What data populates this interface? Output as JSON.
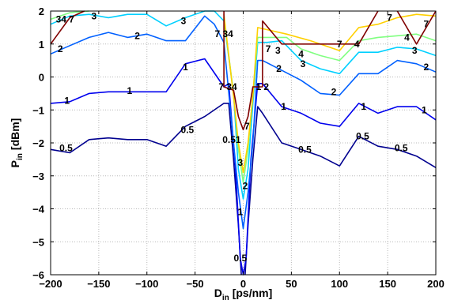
{
  "chart_data": {
    "type": "contour",
    "xlabel_main": "D",
    "xlabel_sub": "in",
    "xlabel_unit": "[ps/nm]",
    "ylabel_main": "P",
    "ylabel_sub": "in",
    "ylabel_unit": "[dBm]",
    "xlim": [
      -200,
      200
    ],
    "ylim": [
      -6,
      2
    ],
    "xticks": [
      -200,
      -150,
      -100,
      -50,
      0,
      50,
      100,
      150,
      200
    ],
    "yticks": [
      -6,
      -5,
      -4,
      -3,
      -2,
      -1,
      0,
      1,
      2
    ],
    "grid": true,
    "series": [
      {
        "name": "0.5",
        "color": "#00008f",
        "paths": [
          [
            [
              -200,
              -2.2
            ],
            [
              -180,
              -2.3
            ],
            [
              -160,
              -1.9
            ],
            [
              -140,
              -1.85
            ],
            [
              -120,
              -1.9
            ],
            [
              -100,
              -1.9
            ],
            [
              -80,
              -2.1
            ],
            [
              -60,
              -1.5
            ],
            [
              -40,
              -1.2
            ],
            [
              -20,
              -0.8
            ],
            [
              -15,
              -0.8
            ],
            [
              -10,
              -2.5
            ],
            [
              -5,
              -4.5
            ],
            [
              -2,
              -6
            ]
          ],
          [
            [
              2,
              -6
            ],
            [
              5,
              -4.5
            ],
            [
              10,
              -2.5
            ],
            [
              15,
              -0.9
            ],
            [
              20,
              -1.1
            ],
            [
              40,
              -2
            ],
            [
              60,
              -2.2
            ],
            [
              80,
              -2.4
            ],
            [
              100,
              -2.7
            ],
            [
              120,
              -1.8
            ],
            [
              140,
              -2.1
            ],
            [
              160,
              -2.2
            ],
            [
              180,
              -2.4
            ],
            [
              200,
              -2.75
            ]
          ]
        ]
      },
      {
        "name": "1",
        "color": "#0000ee",
        "paths": [
          [
            [
              -200,
              -0.8
            ],
            [
              -180,
              -0.75
            ],
            [
              -160,
              -0.5
            ],
            [
              -140,
              -0.45
            ],
            [
              -120,
              -0.45
            ],
            [
              -100,
              -0.45
            ],
            [
              -80,
              -0.45
            ],
            [
              -60,
              0.4
            ],
            [
              -40,
              0.55
            ],
            [
              -20,
              -0.3
            ],
            [
              -15,
              -0.2
            ],
            [
              -8,
              -2.8
            ],
            [
              -3,
              -5.5
            ],
            [
              0,
              -6
            ],
            [
              3,
              -5.5
            ],
            [
              8,
              -2.5
            ],
            [
              15,
              -0.2
            ],
            [
              20,
              -0.2
            ],
            [
              40,
              -0.9
            ],
            [
              60,
              -1.1
            ],
            [
              80,
              -1.4
            ],
            [
              100,
              -1.5
            ],
            [
              120,
              -0.8
            ],
            [
              140,
              -1.1
            ],
            [
              160,
              -0.9
            ],
            [
              180,
              -0.9
            ],
            [
              200,
              -1.3
            ]
          ]
        ]
      },
      {
        "name": "2",
        "color": "#0060ff",
        "paths": [
          [
            [
              -200,
              0.7
            ],
            [
              -180,
              0.95
            ],
            [
              -160,
              1.2
            ],
            [
              -140,
              1.35
            ],
            [
              -120,
              1.2
            ],
            [
              -100,
              1.3
            ],
            [
              -80,
              1.1
            ],
            [
              -60,
              1.1
            ],
            [
              -40,
              1.85
            ],
            [
              -30,
              1.6
            ],
            [
              -20,
              1.05
            ],
            [
              -10,
              -2
            ],
            [
              -5,
              -3.5
            ],
            [
              0,
              -4.6
            ],
            [
              5,
              -3.5
            ],
            [
              10,
              -2
            ],
            [
              15,
              0.5
            ],
            [
              20,
              0.5
            ],
            [
              40,
              0.2
            ],
            [
              60,
              -0.1
            ],
            [
              80,
              -0.5
            ],
            [
              100,
              -0.55
            ],
            [
              120,
              0.1
            ],
            [
              140,
              0.1
            ],
            [
              160,
              0.5
            ],
            [
              180,
              0.4
            ],
            [
              200,
              0.15
            ]
          ]
        ]
      },
      {
        "name": "3",
        "color": "#00d0ff",
        "paths": [
          [
            [
              -200,
              1.6
            ],
            [
              -180,
              1.85
            ],
            [
              -160,
              1.9
            ],
            [
              -140,
              1.8
            ],
            [
              -120,
              1.9
            ],
            [
              -100,
              1.9
            ],
            [
              -80,
              1.55
            ],
            [
              -60,
              1.8
            ],
            [
              -40,
              2
            ],
            [
              -30,
              2
            ],
            [
              -20,
              1.7
            ],
            [
              -10,
              -0.5
            ],
            [
              -5,
              -2.8
            ],
            [
              0,
              -3.7
            ],
            [
              5,
              -2.8
            ],
            [
              10,
              -0.8
            ],
            [
              15,
              1.05
            ],
            [
              25,
              1.05
            ],
            [
              40,
              1.1
            ],
            [
              60,
              0.5
            ],
            [
              80,
              0.25
            ],
            [
              100,
              0.1
            ],
            [
              120,
              0.75
            ],
            [
              140,
              0.75
            ],
            [
              160,
              0.9
            ],
            [
              180,
              0.85
            ],
            [
              200,
              0.65
            ]
          ]
        ]
      },
      {
        "name": "4",
        "color": "#80ff80",
        "paths": [
          [
            [
              -200,
              1.75
            ],
            [
              -180,
              1.95
            ],
            [
              -160,
              2
            ]
          ],
          [
            [
              -20,
              1.8
            ],
            [
              -10,
              -0.5
            ],
            [
              -5,
              -2.2
            ],
            [
              0,
              -3.2
            ],
            [
              5,
              -2.2
            ],
            [
              10,
              -0.5
            ],
            [
              15,
              1.2
            ],
            [
              25,
              1.2
            ],
            [
              45,
              1.2
            ],
            [
              60,
              0.85
            ],
            [
              80,
              0.65
            ],
            [
              100,
              0.5
            ],
            [
              120,
              1.1
            ],
            [
              140,
              1.2
            ],
            [
              160,
              1.25
            ],
            [
              180,
              1.3
            ],
            [
              200,
              1.1
            ]
          ]
        ]
      },
      {
        "name": "7",
        "color": "#ffd000",
        "paths": [
          [
            [
              -20,
              1.9
            ],
            [
              -10,
              -0.6
            ],
            [
              -5,
              -2
            ],
            [
              0,
              -2.9
            ],
            [
              5,
              -2
            ],
            [
              10,
              -0.6
            ],
            [
              15,
              1.5
            ],
            [
              45,
              1.3
            ],
            [
              70,
              1.1
            ],
            [
              100,
              0.8
            ],
            [
              120,
              1.5
            ],
            [
              140,
              1.6
            ],
            [
              160,
              1.8
            ],
            [
              180,
              1.9
            ],
            [
              200,
              1.85
            ]
          ]
        ]
      },
      {
        "name": "7",
        "color": "#800000",
        "paths": [
          [
            [
              -200,
              1
            ],
            [
              -180,
              1.8
            ],
            [
              -165,
              2
            ]
          ],
          [
            [
              -20,
              2
            ],
            [
              -20,
              -0.3
            ],
            [
              -10,
              -0.4
            ],
            [
              -5,
              -1.2
            ],
            [
              0,
              -1.6
            ],
            [
              5,
              -1.2
            ],
            [
              10,
              -0.3
            ],
            [
              20,
              -0.3
            ],
            [
              20,
              1.7
            ],
            [
              40,
              1
            ],
            [
              100,
              1
            ],
            [
              120,
              1
            ],
            [
              140,
              2
            ]
          ],
          [
            [
              160,
              2
            ],
            [
              180,
              1
            ],
            [
              200,
              2
            ]
          ]
        ]
      }
    ],
    "contour_labels": [
      {
        "text": "0.5",
        "x": -184,
        "y": -2.15
      },
      {
        "text": "0.5",
        "x": -58,
        "y": -1.6
      },
      {
        "text": "0.51",
        "x": -12,
        "y": -1.9
      },
      {
        "text": "0.5",
        "x": -3,
        "y": -5.5
      },
      {
        "text": "0.5",
        "x": 64,
        "y": -2.2
      },
      {
        "text": "0.5",
        "x": 124,
        "y": -1.8
      },
      {
        "text": "0.5",
        "x": 164,
        "y": -2.15
      },
      {
        "text": "1",
        "x": -183,
        "y": -0.72
      },
      {
        "text": "1",
        "x": -118,
        "y": -0.42
      },
      {
        "text": "1",
        "x": -60,
        "y": 0.3
      },
      {
        "text": "1",
        "x": -3,
        "y": -4.1
      },
      {
        "text": "1",
        "x": 42,
        "y": -0.9
      },
      {
        "text": "1",
        "x": 125,
        "y": -0.9
      },
      {
        "text": "1",
        "x": 188,
        "y": -1.0
      },
      {
        "text": "2",
        "x": -190,
        "y": 0.85
      },
      {
        "text": "2",
        "x": -110,
        "y": 1.25
      },
      {
        "text": "2",
        "x": 2,
        "y": -3.3
      },
      {
        "text": "2",
        "x": 37,
        "y": 0.25
      },
      {
        "text": "2",
        "x": 94,
        "y": -0.45
      },
      {
        "text": "2",
        "x": 190,
        "y": 0.3
      },
      {
        "text": "3",
        "x": -155,
        "y": 1.85
      },
      {
        "text": "3",
        "x": -62,
        "y": 1.7
      },
      {
        "text": "3",
        "x": 62,
        "y": 0.4
      },
      {
        "text": "3",
        "x": 178,
        "y": 0.8
      },
      {
        "text": "3",
        "x": -3,
        "y": -2.6
      },
      {
        "text": "34 7",
        "x": -185,
        "y": 1.75
      },
      {
        "text": "7 34",
        "x": -20,
        "y": 1.3
      },
      {
        "text": "7 34",
        "x": -16,
        "y": -0.3
      },
      {
        "text": "7",
        "x": 4,
        "y": -1.5
      },
      {
        "text": "7",
        "x": 26,
        "y": 0.85
      },
      {
        "text": "3",
        "x": 36,
        "y": 0.8
      },
      {
        "text": "4",
        "x": 60,
        "y": 0.7
      },
      {
        "text": "7",
        "x": 100,
        "y": 1.0
      },
      {
        "text": "4",
        "x": 118,
        "y": 1.0
      },
      {
        "text": "7",
        "x": 152,
        "y": 1.8
      },
      {
        "text": "4",
        "x": 170,
        "y": 1.2
      },
      {
        "text": "7",
        "x": 190,
        "y": 1.6
      },
      {
        "text": "1",
        "x": 16,
        "y": -0.3
      },
      {
        "text": "2",
        "x": 24,
        "y": -0.3
      }
    ]
  }
}
